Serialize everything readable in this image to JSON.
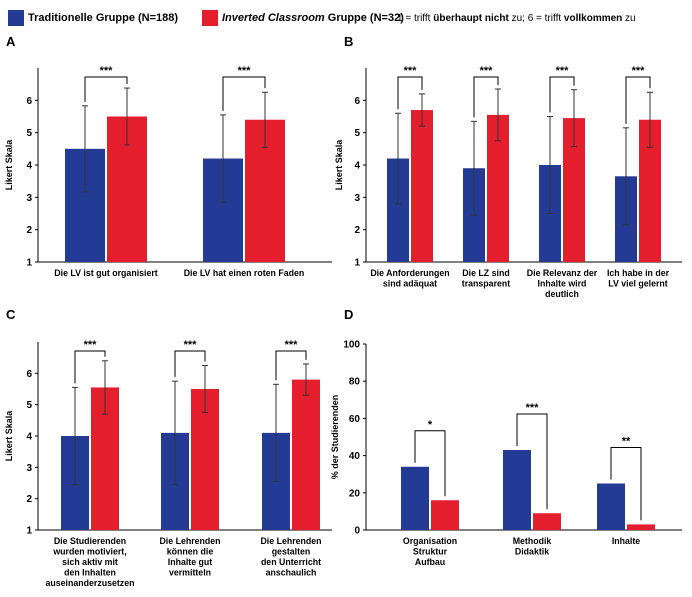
{
  "legend": {
    "traditional_label": "Traditionelle Gruppe (N=188)",
    "inverted_name": "Inverted Classroom",
    "inverted_rest": " Gruppe (N=32)",
    "scale_prefix": "1 = trifft ",
    "scale_bold1": "überhaupt nicht",
    "scale_mid": " zu; 6 = trifft ",
    "scale_bold2": "vollkommen",
    "scale_suffix": " zu"
  },
  "colors": {
    "traditional": "#233b94",
    "inverted": "#e41e2d"
  },
  "chart_data": [
    {
      "panel": "A",
      "type": "bar",
      "ylabel": "Likert Skala",
      "ylim": [
        1,
        7
      ],
      "yticks": [
        1,
        2,
        3,
        4,
        5,
        6
      ],
      "categories": [
        [
          "Die LV ist gut organisiert"
        ],
        [
          "Die LV hat einen roten Faden"
        ]
      ],
      "series": [
        {
          "name": "Traditionelle Gruppe (N=188)",
          "values": [
            4.5,
            4.2
          ],
          "errors": [
            1.33,
            1.35
          ]
        },
        {
          "name": "Inverted Classroom Gruppe (N=32)",
          "values": [
            5.5,
            5.4
          ],
          "errors": [
            0.88,
            0.85
          ]
        }
      ],
      "significance": [
        "***",
        "***"
      ]
    },
    {
      "panel": "B",
      "type": "bar",
      "ylabel": "Likert Skala",
      "ylim": [
        1,
        7
      ],
      "yticks": [
        1,
        2,
        3,
        4,
        5,
        6
      ],
      "categories": [
        [
          "Die Anforderungen",
          "sind adäquat"
        ],
        [
          "Die LZ sind",
          "transparent"
        ],
        [
          "Die Relevanz der",
          "Inhalte wird",
          "deutlich"
        ],
        [
          "Ich habe in der",
          "LV viel gelernt"
        ]
      ],
      "series": [
        {
          "name": "Traditionelle Gruppe (N=188)",
          "values": [
            4.2,
            3.9,
            4.0,
            3.65
          ],
          "errors": [
            1.4,
            1.45,
            1.5,
            1.5
          ]
        },
        {
          "name": "Inverted Classroom Gruppe (N=32)",
          "values": [
            5.7,
            5.55,
            5.45,
            5.4
          ],
          "errors": [
            0.5,
            0.8,
            0.88,
            0.85
          ]
        }
      ],
      "significance": [
        "***",
        "***",
        "***",
        "***"
      ]
    },
    {
      "panel": "C",
      "type": "bar",
      "ylabel": "Likert Skala",
      "ylim": [
        1,
        7
      ],
      "yticks": [
        1,
        2,
        3,
        4,
        5,
        6
      ],
      "categories": [
        [
          "Die Studierenden",
          "wurden motiviert,",
          "sich aktiv mit",
          "den Inhalten",
          "auseinanderzusetzen"
        ],
        [
          "Die Lehrenden",
          "können die",
          "Inhalte gut",
          "vermitteln"
        ],
        [
          "Die Lehrenden",
          "gestalten",
          "den Unterricht",
          "anschaulich"
        ]
      ],
      "series": [
        {
          "name": "Traditionelle Gruppe (N=188)",
          "values": [
            4.0,
            4.1,
            4.1
          ],
          "errors": [
            1.55,
            1.65,
            1.55
          ]
        },
        {
          "name": "Inverted Classroom Gruppe (N=32)",
          "values": [
            5.55,
            5.5,
            5.8
          ],
          "errors": [
            0.85,
            0.75,
            0.5
          ]
        }
      ],
      "significance": [
        "***",
        "***",
        "***"
      ]
    },
    {
      "panel": "D",
      "type": "bar",
      "ylabel": "% der Studierenden",
      "ylim": [
        0,
        100
      ],
      "yticks": [
        0,
        20,
        40,
        60,
        80,
        100
      ],
      "categories": [
        [
          "Organisation",
          "Struktur",
          "Aufbau"
        ],
        [
          "Methodik",
          "Didaktik"
        ],
        [
          "Inhalte"
        ]
      ],
      "series": [
        {
          "name": "Traditionelle Gruppe (N=188)",
          "values": [
            34,
            43,
            25
          ],
          "errors": []
        },
        {
          "name": "Inverted Classroom Gruppe (N=32)",
          "values": [
            16,
            9,
            3
          ],
          "errors": []
        }
      ],
      "significance": [
        "*",
        "***",
        "**"
      ]
    }
  ]
}
